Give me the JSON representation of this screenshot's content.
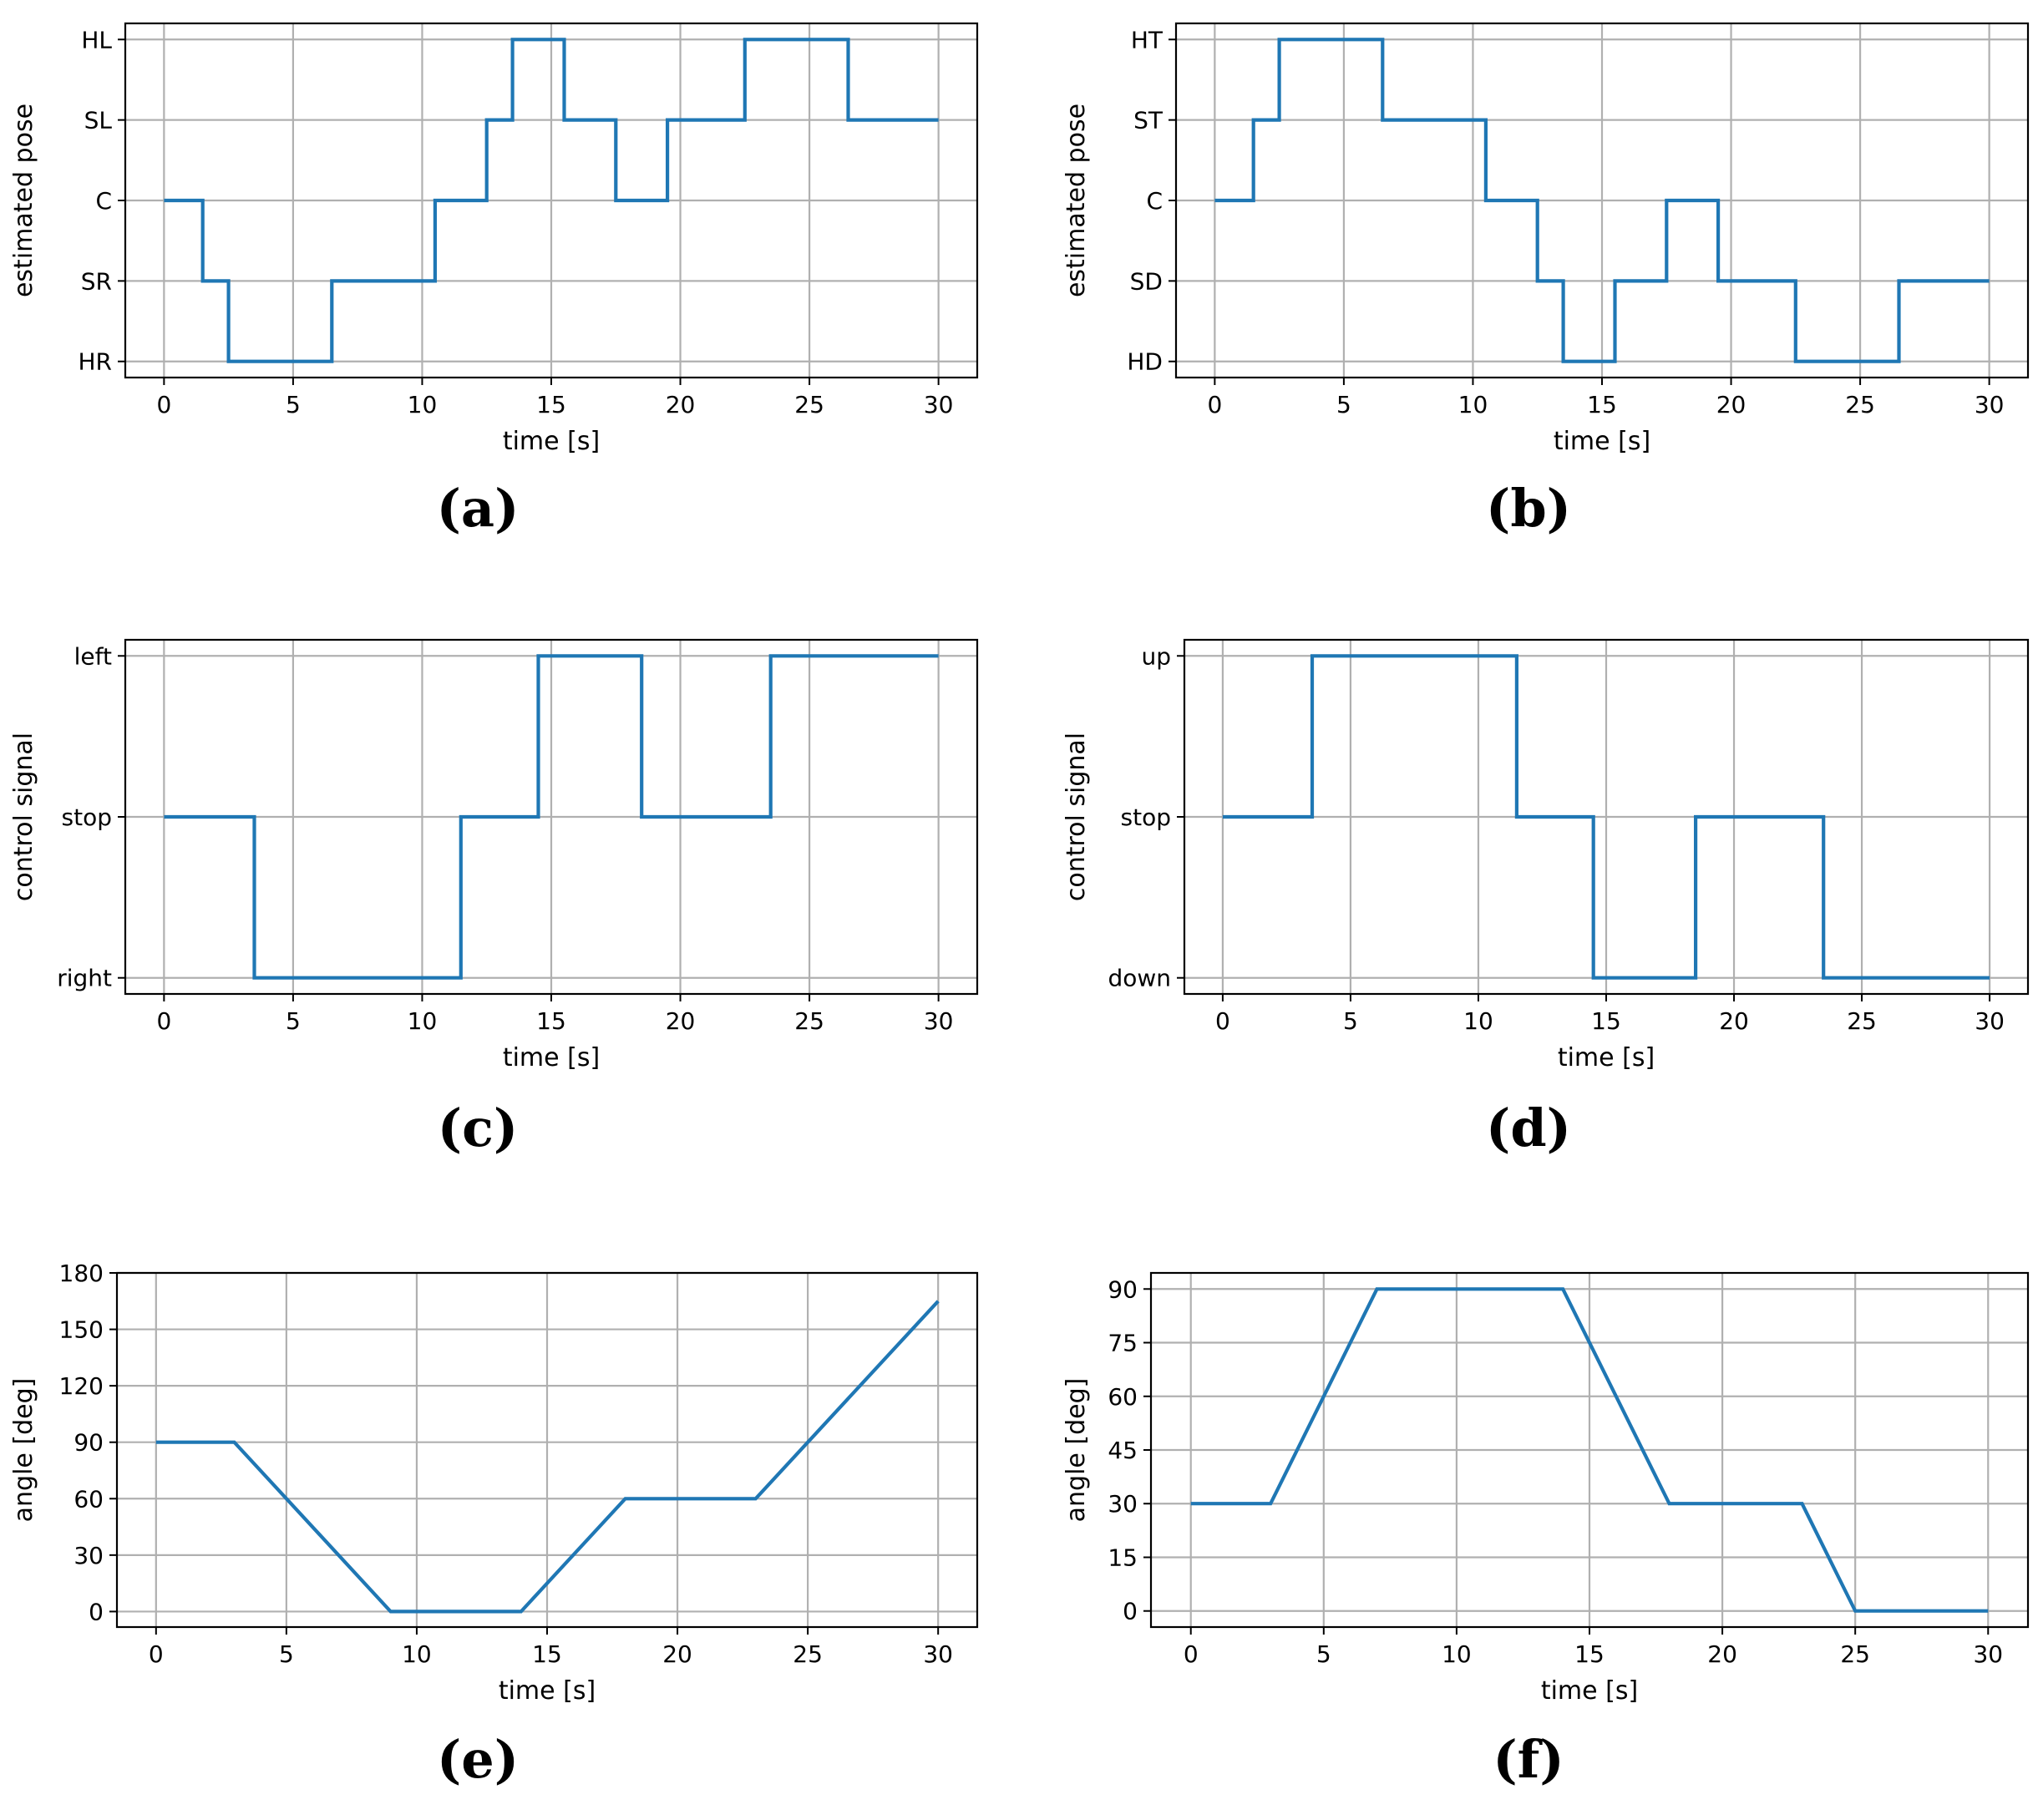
{
  "chart_data": [
    {
      "id": "a",
      "type": "line",
      "step": true,
      "caption": "(a)",
      "xlabel": "time [s]",
      "ylabel": "estimated pose",
      "xlim": [
        -1.5,
        31.5
      ],
      "ylim": [
        -0.2,
        4.2
      ],
      "xticks": [
        0,
        5,
        10,
        15,
        20,
        25,
        30
      ],
      "xtick_labels": [
        "0",
        "5",
        "10",
        "15",
        "20",
        "25",
        "30"
      ],
      "yticks": [
        0,
        1,
        2,
        3,
        4
      ],
      "ytick_labels": [
        "HR",
        "SR",
        "C",
        "SL",
        "HL"
      ],
      "grid": true,
      "series": [
        {
          "name": "pose",
          "x": [
            0,
            1.5,
            1.5,
            2.5,
            2.5,
            6.5,
            6.5,
            10.5,
            10.5,
            12.5,
            12.5,
            13.5,
            13.5,
            15.5,
            15.5,
            17.5,
            17.5,
            19.5,
            19.5,
            22.5,
            22.5,
            26.5,
            26.5,
            30
          ],
          "y": [
            2,
            2,
            1,
            1,
            0,
            0,
            1,
            1,
            2,
            2,
            3,
            3,
            4,
            4,
            3,
            3,
            2,
            2,
            3,
            3,
            4,
            4,
            3,
            3
          ]
        }
      ]
    },
    {
      "id": "b",
      "type": "line",
      "step": true,
      "caption": "(b)",
      "xlabel": "time [s]",
      "ylabel": "estimated pose",
      "xlim": [
        -1.5,
        31.5
      ],
      "ylim": [
        -0.2,
        4.2
      ],
      "xticks": [
        0,
        5,
        10,
        15,
        20,
        25,
        30
      ],
      "xtick_labels": [
        "0",
        "5",
        "10",
        "15",
        "20",
        "25",
        "30"
      ],
      "yticks": [
        0,
        1,
        2,
        3,
        4
      ],
      "ytick_labels": [
        "HD",
        "SD",
        "C",
        "ST",
        "HT"
      ],
      "grid": true,
      "series": [
        {
          "name": "pose",
          "x": [
            0,
            1.5,
            1.5,
            2.5,
            2.5,
            6.5,
            6.5,
            10.5,
            10.5,
            12.5,
            12.5,
            13.5,
            13.5,
            15.5,
            15.5,
            17.5,
            17.5,
            19.5,
            19.5,
            22.5,
            22.5,
            26.5,
            26.5,
            30
          ],
          "y": [
            2,
            2,
            3,
            3,
            4,
            4,
            3,
            3,
            2,
            2,
            1,
            1,
            0,
            0,
            1,
            1,
            2,
            2,
            1,
            1,
            0,
            0,
            1,
            1
          ]
        }
      ]
    },
    {
      "id": "c",
      "type": "line",
      "step": true,
      "caption": "(c)",
      "xlabel": "time [s]",
      "ylabel": "control signal",
      "xlim": [
        -1.5,
        31.5
      ],
      "ylim": [
        -1.1,
        1.1
      ],
      "xticks": [
        0,
        5,
        10,
        15,
        20,
        25,
        30
      ],
      "xtick_labels": [
        "0",
        "5",
        "10",
        "15",
        "20",
        "25",
        "30"
      ],
      "yticks": [
        -1,
        0,
        1
      ],
      "ytick_labels": [
        "right",
        "stop",
        "left"
      ],
      "grid": true,
      "series": [
        {
          "name": "control",
          "x": [
            0,
            3.5,
            3.5,
            11.5,
            11.5,
            14.5,
            14.5,
            18.5,
            18.5,
            23.5,
            23.5,
            30
          ],
          "y": [
            0,
            0,
            -1,
            -1,
            0,
            0,
            1,
            1,
            0,
            0,
            1,
            1
          ]
        }
      ]
    },
    {
      "id": "d",
      "type": "line",
      "step": true,
      "caption": "(d)",
      "xlabel": "time [s]",
      "ylabel": "control signal",
      "xlim": [
        -1.5,
        31.5
      ],
      "ylim": [
        -1.1,
        1.1
      ],
      "xticks": [
        0,
        5,
        10,
        15,
        20,
        25,
        30
      ],
      "xtick_labels": [
        "0",
        "5",
        "10",
        "15",
        "20",
        "25",
        "30"
      ],
      "yticks": [
        -1,
        0,
        1
      ],
      "ytick_labels": [
        "down",
        "stop",
        "up"
      ],
      "grid": true,
      "series": [
        {
          "name": "control",
          "x": [
            0,
            3.5,
            3.5,
            11.5,
            11.5,
            14.5,
            14.5,
            18.5,
            18.5,
            23.5,
            23.5,
            30
          ],
          "y": [
            0,
            0,
            1,
            1,
            0,
            0,
            -1,
            -1,
            0,
            0,
            -1,
            -1
          ]
        }
      ]
    },
    {
      "id": "e",
      "type": "line",
      "step": false,
      "caption": "(e)",
      "xlabel": "time [s]",
      "ylabel": "angle [deg]",
      "xlim": [
        -1.5,
        31.5
      ],
      "ylim": [
        -8.25,
        180
      ],
      "xticks": [
        0,
        5,
        10,
        15,
        20,
        25,
        30
      ],
      "xtick_labels": [
        "0",
        "5",
        "10",
        "15",
        "20",
        "25",
        "30"
      ],
      "yticks": [
        0,
        30,
        60,
        90,
        120,
        150,
        180
      ],
      "ytick_labels": [
        "0",
        "30",
        "60",
        "90",
        "120",
        "150",
        "180"
      ],
      "grid": true,
      "series": [
        {
          "name": "angle",
          "x": [
            0,
            3,
            9,
            14,
            18,
            23,
            30
          ],
          "y": [
            90,
            90,
            0,
            0,
            60,
            60,
            165
          ]
        }
      ]
    },
    {
      "id": "f",
      "type": "line",
      "step": false,
      "caption": "(f)",
      "xlabel": "time [s]",
      "ylabel": "angle [deg]",
      "xlim": [
        -1.5,
        31.5
      ],
      "ylim": [
        -4.5,
        94.5
      ],
      "xticks": [
        0,
        5,
        10,
        15,
        20,
        25,
        30
      ],
      "xtick_labels": [
        "0",
        "5",
        "10",
        "15",
        "20",
        "25",
        "30"
      ],
      "yticks": [
        0,
        15,
        30,
        45,
        60,
        75,
        90
      ],
      "ytick_labels": [
        "0",
        "15",
        "30",
        "45",
        "60",
        "75",
        "90"
      ],
      "grid": true,
      "series": [
        {
          "name": "angle",
          "x": [
            0,
            3,
            7,
            14,
            18,
            23,
            25,
            30
          ],
          "y": [
            30,
            30,
            90,
            90,
            30,
            30,
            0,
            0
          ]
        }
      ]
    }
  ]
}
